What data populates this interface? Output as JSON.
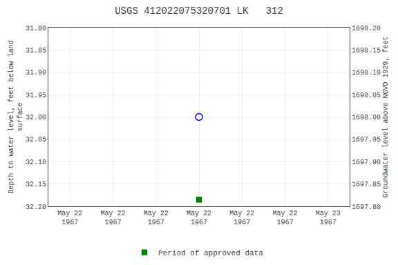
{
  "chart_data": {
    "type": "scatter",
    "title": "USGS 412022075320701 LK   312",
    "categories": [
      "May 22\n1967",
      "May 22\n1967",
      "May 22\n1967",
      "May 22\n1967",
      "May 22\n1967",
      "May 22\n1967",
      "May 23\n1967"
    ],
    "y_label": "Depth to water level, feet below land\nsurface",
    "y2_label": "Groundwater level above NGVD 1929, feet",
    "ylim": [
      32.2,
      31.8
    ],
    "yticks": [
      {
        "value": 31.8,
        "label": "31.80"
      },
      31.85,
      {
        "value": 31.9,
        "label": "31.90"
      },
      31.95,
      {
        "value": 32.0,
        "label": "32.00"
      },
      32.05,
      {
        "value": 32.1,
        "label": "32.10"
      },
      32.15,
      {
        "value": 32.2,
        "label": "32.20"
      }
    ],
    "y2lim": [
      1697.8,
      1698.2
    ],
    "y2ticks": [
      {
        "value": 1698.2,
        "label": "1698.20"
      },
      1698.15,
      {
        "value": 1698.1,
        "label": "1698.10"
      },
      1698.05,
      {
        "value": 1698.0,
        "label": "1698.00"
      },
      1697.95,
      {
        "value": 1697.9,
        "label": "1697.90"
      },
      1697.85,
      {
        "value": 1697.8,
        "label": "1697.80"
      }
    ],
    "series": [
      {
        "color": "#0000ff",
        "marker": "circle_open",
        "line_style": "none",
        "values": [
          null,
          null,
          null,
          32.0,
          null,
          null,
          null
        ]
      },
      {
        "name": "Period of approved data",
        "color": "#008000",
        "marker": "square",
        "line_style": "none",
        "values": [
          null,
          null,
          null,
          32.185,
          null,
          null,
          null
        ]
      }
    ],
    "grid": true,
    "legend": "bottom"
  }
}
